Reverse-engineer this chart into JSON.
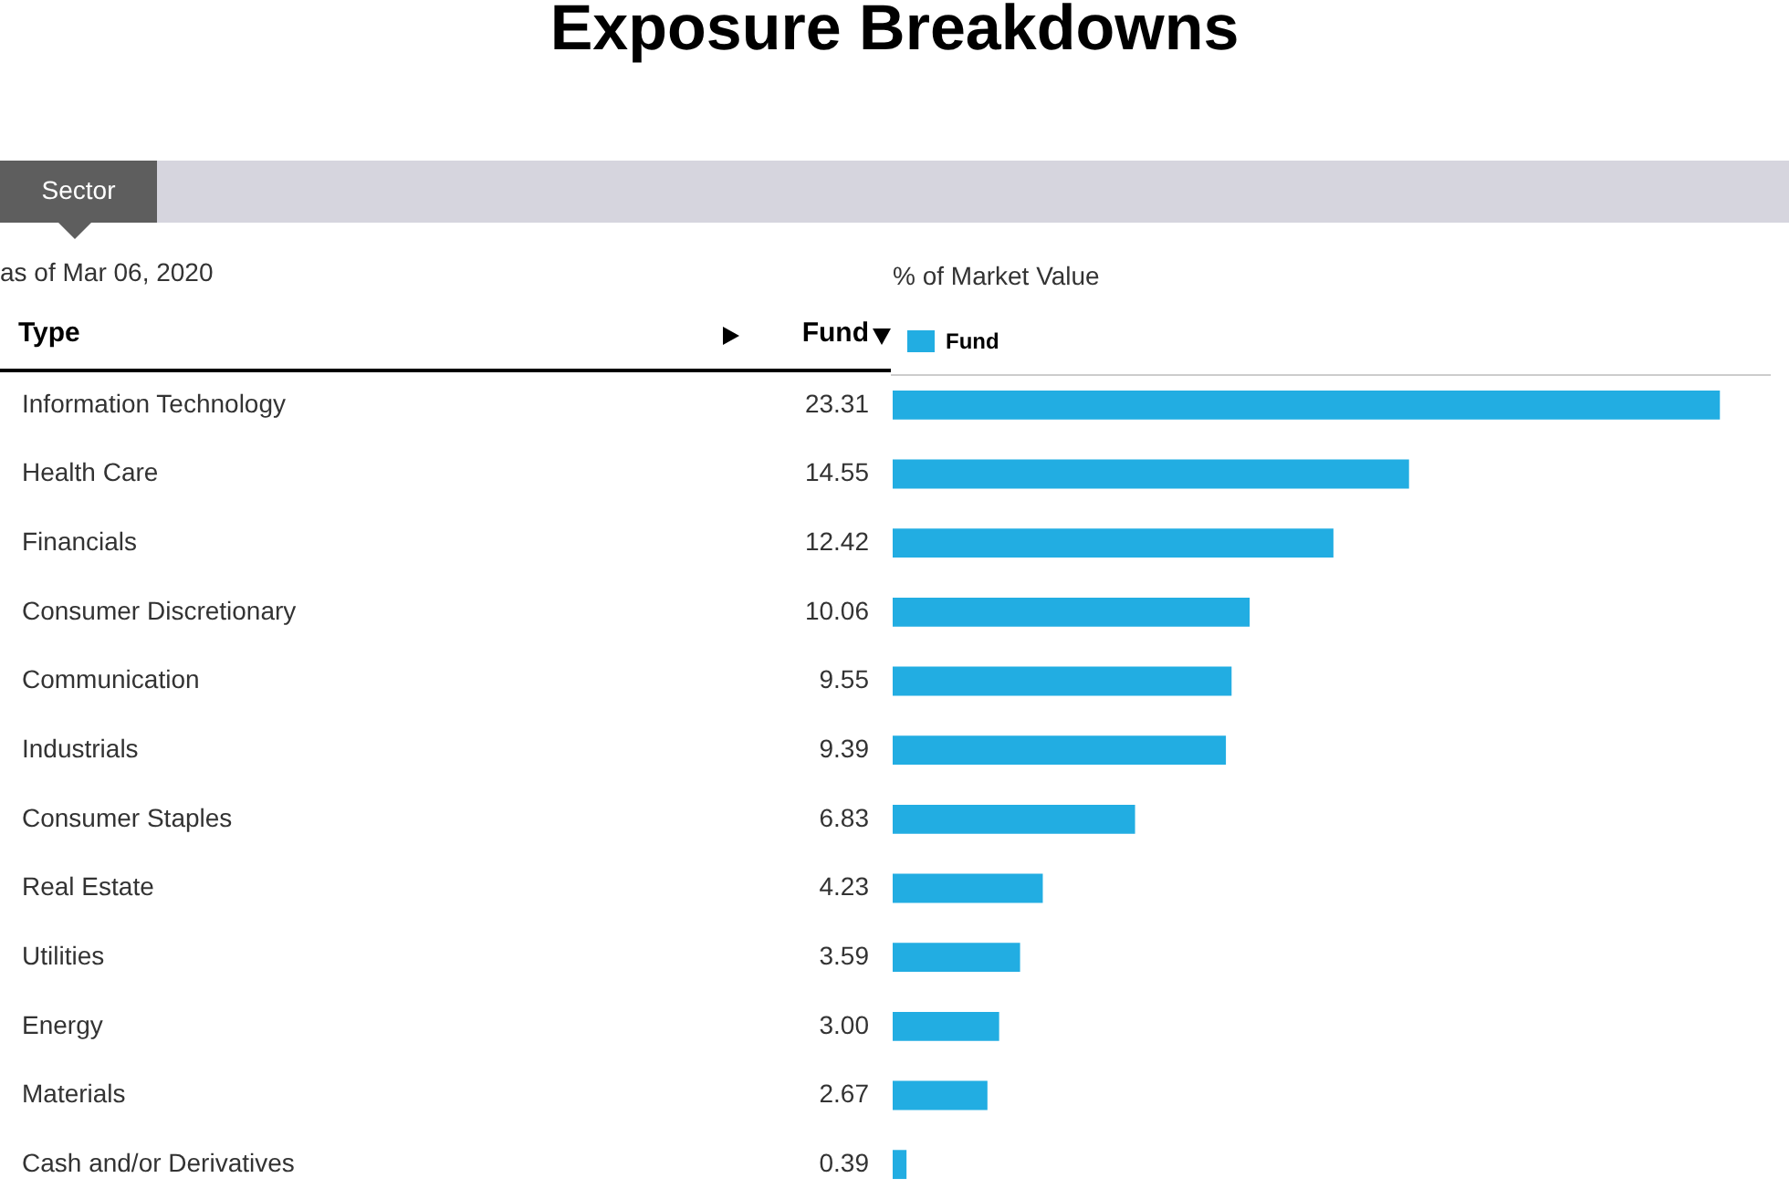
{
  "chart_data": {
    "type": "bar",
    "orientation": "horizontal",
    "title": "Exposure Breakdowns",
    "subtitle": "Sector",
    "xlabel": "% of Market Value",
    "annotations": [
      "as of Mar 06, 2020",
      "Type",
      "Fund"
    ],
    "categories": [
      "Information Technology",
      "Health Care",
      "Financials",
      "Consumer Discretionary",
      "Communication",
      "Industrials",
      "Consumer Staples",
      "Real Estate",
      "Utilities",
      "Energy",
      "Materials",
      "Cash and/or Derivatives"
    ],
    "series": [
      {
        "name": "Fund",
        "color": "#22ade2",
        "values": [
          23.31,
          14.55,
          12.42,
          10.06,
          9.55,
          9.39,
          6.83,
          4.23,
          3.59,
          3.0,
          2.67,
          0.39
        ],
        "value_labels": [
          "23.31",
          "14.55",
          "12.42",
          "10.06",
          "9.55",
          "9.39",
          "6.83",
          "4.23",
          "3.59",
          "3.00",
          "2.67",
          "0.39"
        ]
      }
    ],
    "legend": "top left",
    "tick_labels": "y"
  }
}
